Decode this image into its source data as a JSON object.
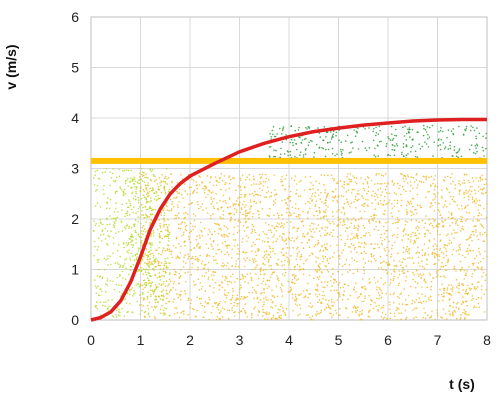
{
  "chart_data": {
    "type": "scatter",
    "xlabel": "t (s)",
    "ylabel": "v (m/s)",
    "xlim": [
      0,
      8
    ],
    "ylim": [
      0,
      6
    ],
    "xticks": [
      "0",
      "1",
      "2",
      "3",
      "4",
      "5",
      "6",
      "7",
      "8"
    ],
    "yticks": [
      "0",
      "1",
      "2",
      "3",
      "4",
      "5",
      "6"
    ],
    "grid": true,
    "legend": "none",
    "colors": {
      "grid": "#d9d9d9",
      "axis": "#bfbfbf",
      "curve": "#e02020",
      "hline": "#ffc000",
      "light_green": "#b5dc2c",
      "yellow": "#f2bb2a",
      "green": "#2e9d3a"
    },
    "series": [
      {
        "type": "line",
        "points": [
          [
            0,
            0
          ],
          [
            0.2,
            0.05
          ],
          [
            0.4,
            0.16
          ],
          [
            0.6,
            0.38
          ],
          [
            0.8,
            0.75
          ],
          [
            1.0,
            1.25
          ],
          [
            1.2,
            1.8
          ],
          [
            1.4,
            2.2
          ],
          [
            1.6,
            2.5
          ],
          [
            1.8,
            2.7
          ],
          [
            2.0,
            2.85
          ],
          [
            2.5,
            3.1
          ],
          [
            3.0,
            3.33
          ],
          [
            3.5,
            3.5
          ],
          [
            4.0,
            3.63
          ],
          [
            4.5,
            3.73
          ],
          [
            5.0,
            3.8
          ],
          [
            5.5,
            3.86
          ],
          [
            6.0,
            3.9
          ],
          [
            6.5,
            3.94
          ],
          [
            7.0,
            3.96
          ],
          [
            7.5,
            3.97
          ],
          [
            8.0,
            3.97
          ]
        ]
      },
      {
        "type": "hline",
        "y": 3.15
      },
      {
        "type": "scatter-clusters",
        "clusters": [
          {
            "color": "yellow",
            "density": 1100,
            "boxes": [
              [
                1.0,
                8.0,
                0.0,
                2.9
              ]
            ]
          },
          {
            "color": "light_green",
            "density": 850,
            "boxes": [
              [
                0.05,
                1.6,
                0.05,
                3.0
              ],
              [
                0.7,
                1.3,
                0.5,
                3.0
              ]
            ]
          },
          {
            "color": "green",
            "density": 900,
            "boxes": [
              [
                3.6,
                8.0,
                3.2,
                3.85
              ]
            ]
          }
        ]
      }
    ]
  }
}
